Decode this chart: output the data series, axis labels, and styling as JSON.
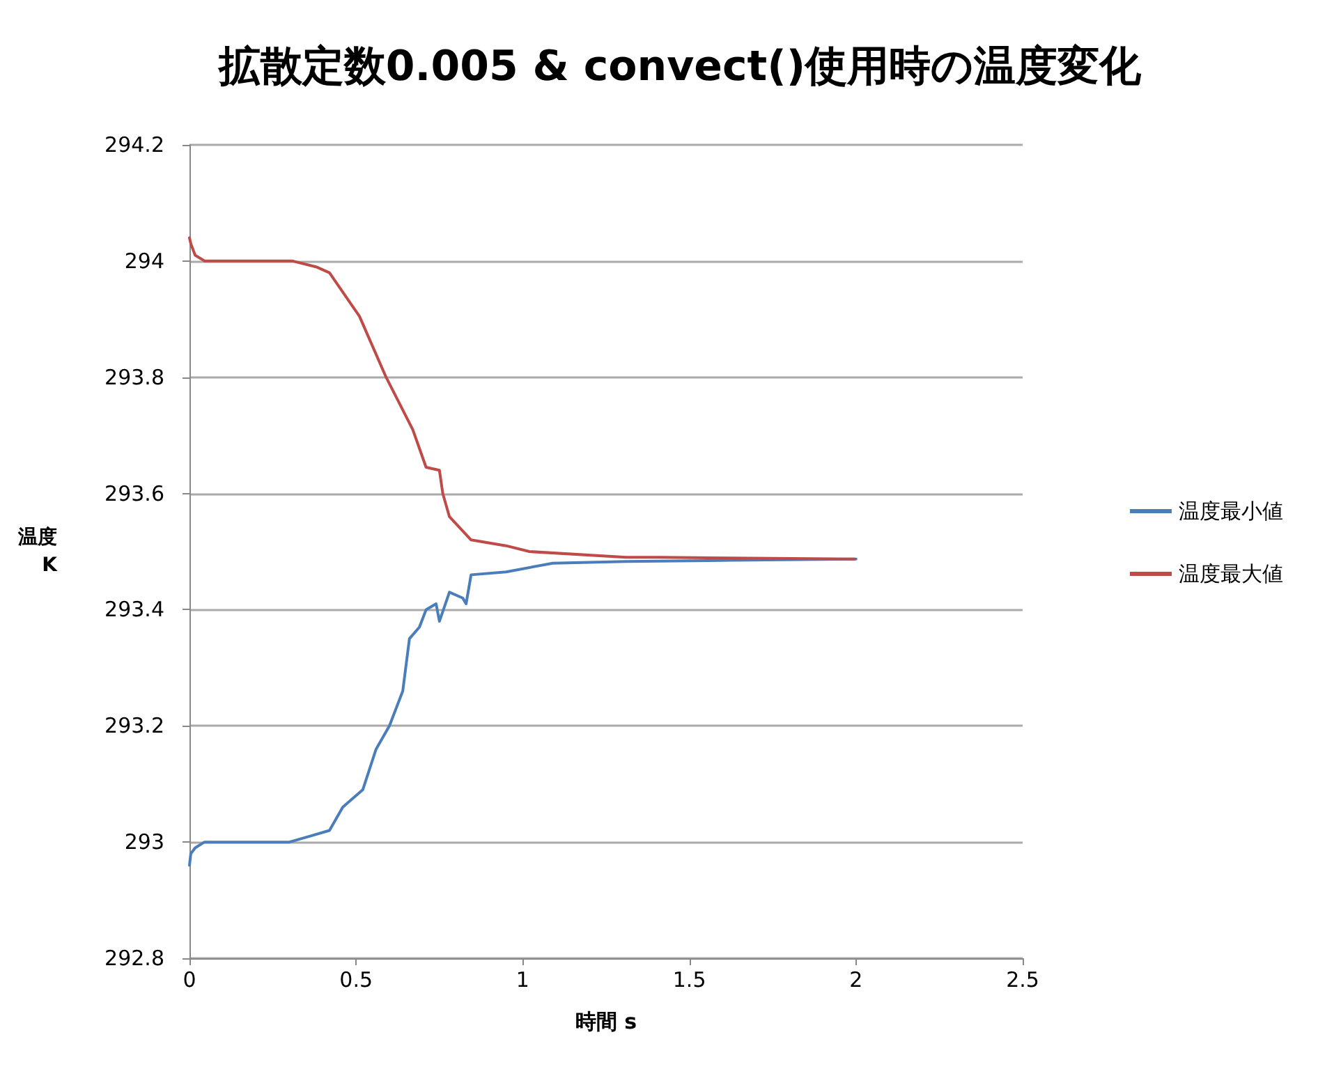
{
  "chart_data": {
    "type": "line",
    "title": "拡散定数0.005 & convect()使用時の温度変化",
    "xlabel": "時間 s",
    "ylabel": "温度\nK",
    "xlim": [
      0,
      2.5
    ],
    "xticks": [
      0,
      0.5,
      1,
      1.5,
      2,
      2.5
    ],
    "ylim": [
      292.8,
      294.2
    ],
    "yticks": [
      292.8,
      293,
      293.2,
      293.4,
      293.6,
      293.8,
      294,
      294.2
    ],
    "grid": "y",
    "legend": "right",
    "marker": "none",
    "line_style": "solid",
    "series": [
      {
        "name": "温度最小値",
        "color": "#4a7ebb",
        "x": [
          0,
          0.004,
          0.017,
          0.045,
          0.3,
          0.36,
          0.42,
          0.46,
          0.52,
          0.56,
          0.6,
          0.64,
          0.66,
          0.69,
          0.71,
          0.74,
          0.75,
          0.78,
          0.82,
          0.83,
          0.845,
          0.95,
          1.09,
          1.31,
          1.63,
          2.0
        ],
        "values": [
          292.96,
          292.98,
          292.99,
          293.0,
          293.0,
          293.01,
          293.02,
          293.06,
          293.09,
          293.16,
          293.2,
          293.26,
          293.35,
          293.37,
          293.4,
          293.41,
          293.38,
          293.43,
          293.42,
          293.41,
          293.46,
          293.465,
          293.48,
          293.483,
          293.485,
          293.487
        ]
      },
      {
        "name": "温度最大値",
        "color": "#be4b48",
        "x": [
          0,
          0.004,
          0.017,
          0.046,
          0.31,
          0.38,
          0.42,
          0.51,
          0.59,
          0.67,
          0.71,
          0.75,
          0.76,
          0.78,
          0.845,
          0.95,
          1.02,
          1.31,
          1.41,
          1.995
        ],
        "values": [
          294.04,
          294.03,
          294.01,
          294.0,
          294.0,
          293.99,
          293.98,
          293.905,
          293.8,
          293.71,
          293.645,
          293.64,
          293.6,
          293.56,
          293.52,
          293.51,
          293.5,
          293.49,
          293.49,
          293.487
        ]
      }
    ]
  }
}
